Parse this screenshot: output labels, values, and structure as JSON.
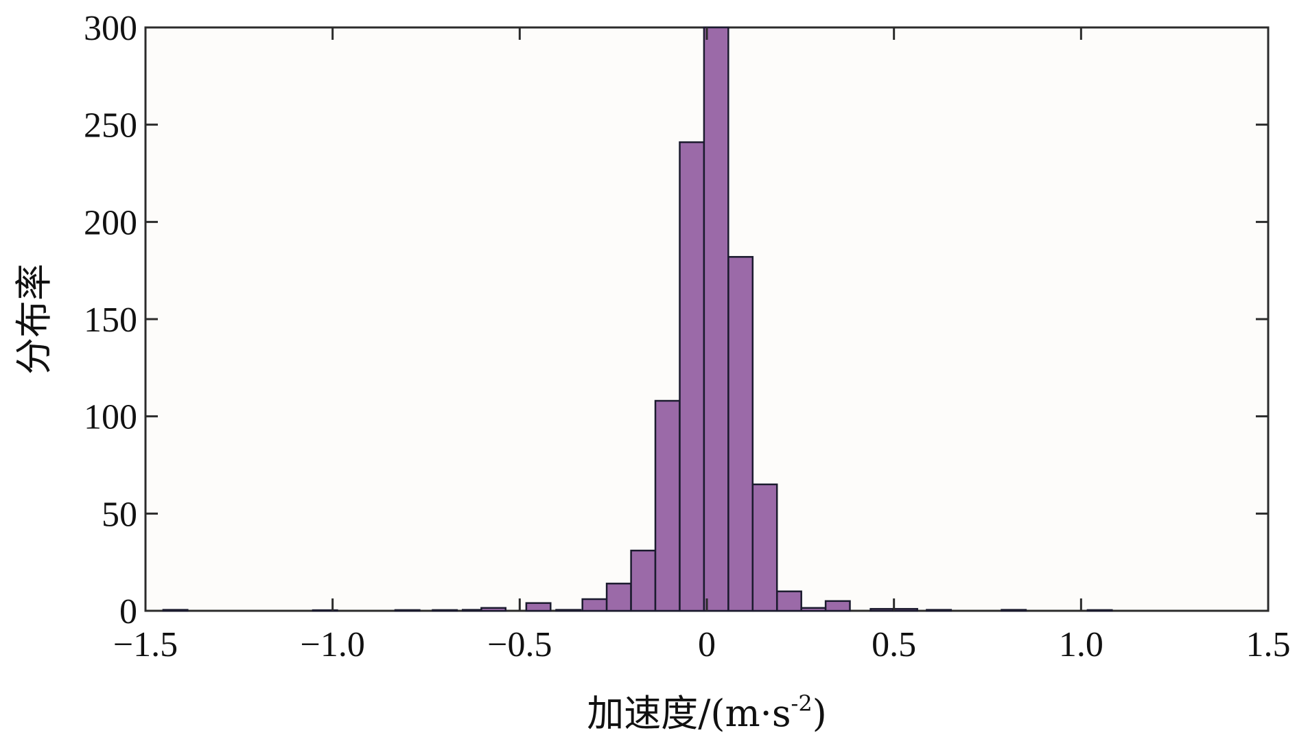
{
  "chart_data": {
    "type": "bar",
    "xlabel_main": "加速度/(m·s",
    "xlabel_sup": "-2",
    "xlabel_close": ")",
    "ylabel": "分布率",
    "xlim": [
      -1.5,
      1.5
    ],
    "ylim": [
      0,
      300
    ],
    "x_ticks": [
      -1.5,
      -1.0,
      -0.5,
      0,
      0.5,
      1.0,
      1.5
    ],
    "x_tick_labels": [
      "−1.5",
      "−1.0",
      "−0.5",
      "0",
      "0.5",
      "1.0",
      "1.5"
    ],
    "y_ticks": [
      0,
      50,
      100,
      150,
      200,
      250,
      300
    ],
    "y_tick_labels": [
      "0",
      "50",
      "100",
      "150",
      "200",
      "250",
      "300"
    ],
    "bin_width": 0.065,
    "bins": [
      {
        "x": -1.42,
        "value": 0.5
      },
      {
        "x": -1.02,
        "value": 0.3
      },
      {
        "x": -0.8,
        "value": 0.4
      },
      {
        "x": -0.7,
        "value": 0.4
      },
      {
        "x": -0.62,
        "value": 0.5
      },
      {
        "x": -0.57,
        "value": 1.5
      },
      {
        "x": -0.45,
        "value": 4
      },
      {
        "x": -0.37,
        "value": 0.5
      },
      {
        "x": -0.3,
        "value": 6
      },
      {
        "x": -0.235,
        "value": 14
      },
      {
        "x": -0.17,
        "value": 31
      },
      {
        "x": -0.105,
        "value": 108
      },
      {
        "x": -0.04,
        "value": 241
      },
      {
        "x": 0.025,
        "value": 300
      },
      {
        "x": 0.09,
        "value": 182
      },
      {
        "x": 0.155,
        "value": 65
      },
      {
        "x": 0.22,
        "value": 10
      },
      {
        "x": 0.285,
        "value": 1.5
      },
      {
        "x": 0.35,
        "value": 5
      },
      {
        "x": 0.47,
        "value": 1
      },
      {
        "x": 0.53,
        "value": 1
      },
      {
        "x": 0.62,
        "value": 0.5
      },
      {
        "x": 0.82,
        "value": 0.5
      },
      {
        "x": 1.05,
        "value": 0.4
      }
    ],
    "bar_color": "#9b6aa8",
    "bar_edge_color": "#1b1b2e",
    "grid": false,
    "legend": "none"
  }
}
